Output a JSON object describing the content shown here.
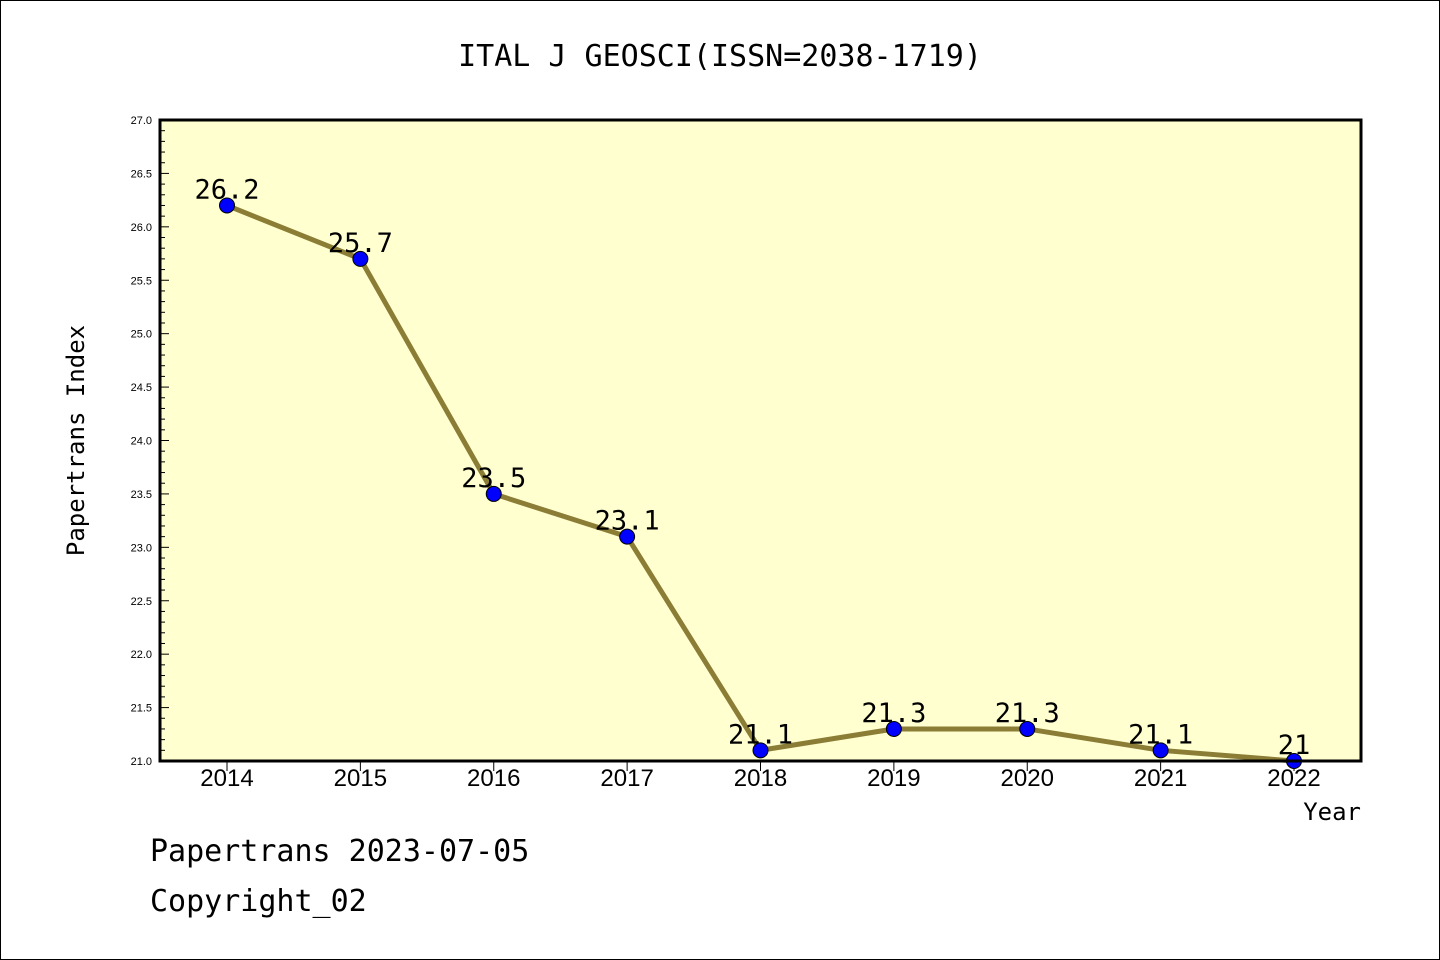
{
  "chart_data": {
    "type": "line",
    "title": "ITAL J GEOSCI(ISSN=2038-1719)",
    "xlabel": "Year",
    "ylabel": "Papertrans Index",
    "categories": [
      "2014",
      "2015",
      "2016",
      "2017",
      "2018",
      "2019",
      "2020",
      "2021",
      "2022"
    ],
    "values": [
      26.2,
      25.7,
      23.5,
      23.1,
      21.1,
      21.3,
      21.3,
      21.1,
      21
    ],
    "data_labels": [
      "26.2",
      "25.7",
      "23.5",
      "23.1",
      "21.1",
      "21.3",
      "21.3",
      "21.1",
      "21"
    ],
    "ylim": [
      21.0,
      27.0
    ],
    "yticks": [
      "21.0",
      "21.5",
      "22.0",
      "22.5",
      "23.0",
      "23.5",
      "24.0",
      "24.5",
      "25.0",
      "25.5",
      "26.0",
      "26.5",
      "27.0"
    ],
    "grid": false,
    "legend": "none",
    "colors": {
      "plot_background": "#ffffd0",
      "line": "#8b7d35",
      "marker": "#0000ff"
    }
  },
  "footer": {
    "line1": "Papertrans 2023-07-05",
    "line2": "Copyright_02"
  }
}
